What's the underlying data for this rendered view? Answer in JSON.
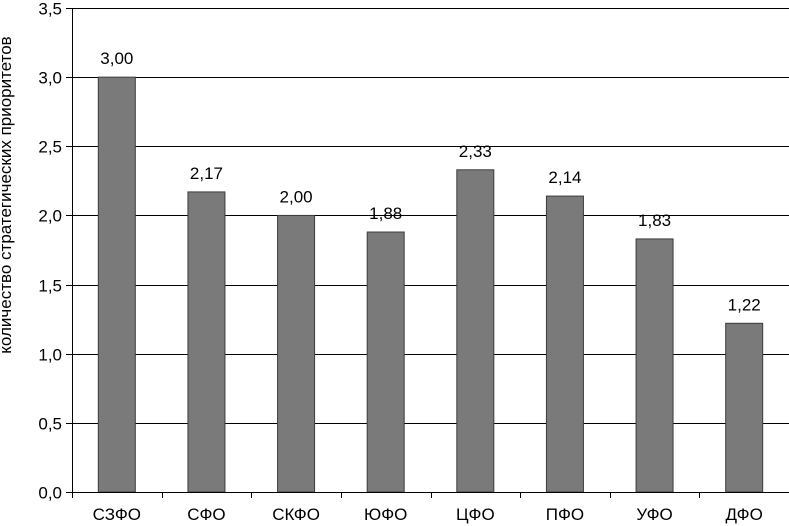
{
  "chart_data": {
    "type": "bar",
    "title": "",
    "xlabel": "",
    "ylabel": "количество стратегических приоритетов",
    "categories": [
      "СЗФО",
      "СФО",
      "СКФО",
      "ЮФО",
      "ЦФО",
      "ПФО",
      "УФО",
      "ДФО"
    ],
    "values": [
      3.0,
      2.17,
      2.0,
      1.88,
      2.33,
      2.14,
      1.83,
      1.22
    ],
    "data_labels": [
      "3,00",
      "2,17",
      "2,00",
      "1,88",
      "2,33",
      "2,14",
      "1,83",
      "1,22"
    ],
    "ylim": [
      0,
      3.5
    ],
    "yticks": [
      0,
      0.5,
      1.0,
      1.5,
      2.0,
      2.5,
      3.0,
      3.5
    ],
    "ytick_labels": [
      "0,0",
      "0,5",
      "1,0",
      "1,5",
      "2,0",
      "2,5",
      "3,0",
      "3,5"
    ],
    "grid": true,
    "legend": "none",
    "colors": {
      "bar": "#7a7a7a",
      "bar_stroke": "#3c3c3c",
      "grid": "#000000",
      "axis": "#000000"
    }
  }
}
